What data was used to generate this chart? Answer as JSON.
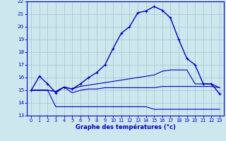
{
  "bg_color": "#cce8ee",
  "grid_color": "#aac8d4",
  "line_color": "#0000bb",
  "xlim": [
    -0.5,
    23.5
  ],
  "ylim": [
    13,
    22
  ],
  "xlabel": "Graphe des températures (°c)",
  "xticks": [
    0,
    1,
    2,
    3,
    4,
    5,
    6,
    7,
    8,
    9,
    10,
    11,
    12,
    13,
    14,
    15,
    16,
    17,
    18,
    19,
    20,
    21,
    22,
    23
  ],
  "yticks": [
    13,
    14,
    15,
    16,
    17,
    18,
    19,
    20,
    21,
    22
  ],
  "main_x": [
    0,
    1,
    2,
    3,
    4,
    5,
    6,
    7,
    8,
    9,
    10,
    11,
    12,
    13,
    14,
    15,
    16,
    17,
    18,
    19,
    20,
    21,
    22,
    23
  ],
  "main_y": [
    15.0,
    16.1,
    15.5,
    14.8,
    15.25,
    15.1,
    15.5,
    16.0,
    16.4,
    17.0,
    18.3,
    19.5,
    20.0,
    21.1,
    21.25,
    21.6,
    21.3,
    20.7,
    19.0,
    17.5,
    17.0,
    15.5,
    15.5,
    14.7
  ],
  "tmin_x": [
    0,
    1,
    2,
    3,
    4,
    5,
    6,
    7,
    8,
    9,
    10,
    11,
    12,
    13,
    14,
    15,
    16,
    17,
    18,
    19,
    20,
    21,
    22,
    23
  ],
  "tmin_y": [
    15.0,
    15.0,
    15.0,
    13.7,
    13.7,
    13.7,
    13.7,
    13.7,
    13.7,
    13.7,
    13.7,
    13.7,
    13.7,
    13.7,
    13.7,
    13.5,
    13.5,
    13.5,
    13.5,
    13.5,
    13.5,
    13.5,
    13.5,
    13.5
  ],
  "tmax_x": [
    0,
    1,
    2,
    3,
    4,
    5,
    6,
    7,
    8,
    9,
    10,
    11,
    12,
    13,
    14,
    15,
    16,
    17,
    18,
    19,
    20,
    21,
    22,
    23
  ],
  "tmax_y": [
    15.0,
    15.0,
    15.0,
    14.9,
    15.25,
    15.1,
    15.3,
    15.4,
    15.5,
    15.6,
    15.7,
    15.8,
    15.9,
    16.0,
    16.1,
    16.2,
    16.5,
    16.6,
    16.6,
    16.6,
    15.5,
    15.5,
    15.5,
    15.2
  ],
  "tmean_x": [
    0,
    1,
    2,
    3,
    4,
    5,
    6,
    7,
    8,
    9,
    10,
    11,
    12,
    13,
    14,
    15,
    16,
    17,
    18,
    19,
    20,
    21,
    22,
    23
  ],
  "tmean_y": [
    15.0,
    15.0,
    15.0,
    14.9,
    15.25,
    14.8,
    15.0,
    15.1,
    15.1,
    15.2,
    15.2,
    15.2,
    15.2,
    15.2,
    15.2,
    15.2,
    15.3,
    15.3,
    15.3,
    15.3,
    15.3,
    15.3,
    15.3,
    15.2
  ]
}
